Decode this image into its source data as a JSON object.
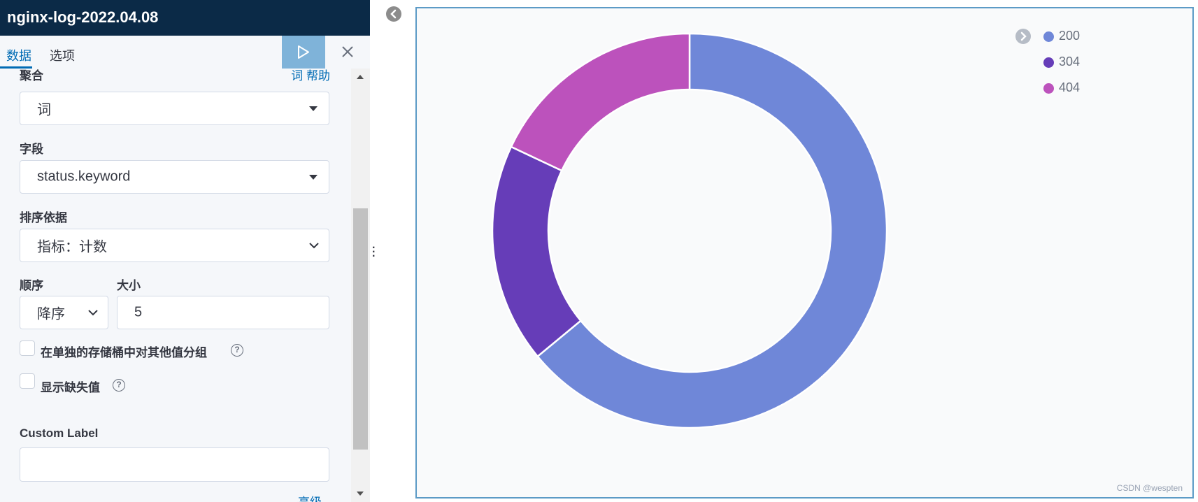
{
  "header": {
    "title": "nginx-log-2022.04.08"
  },
  "tabs": [
    {
      "label": "数据",
      "active": true
    },
    {
      "label": "选项",
      "active": false
    }
  ],
  "form": {
    "aggregation": {
      "label": "聚合",
      "help": "词 帮助",
      "value": "词"
    },
    "field": {
      "label": "字段",
      "value": "status.keyword"
    },
    "order_by": {
      "label": "排序依据",
      "value": "指标：计数"
    },
    "order": {
      "label": "顺序",
      "value": "降序"
    },
    "size": {
      "label": "大小",
      "value": "5"
    },
    "group_other": {
      "label": "在单独的存储桶中对其他值分组",
      "checked": false
    },
    "show_missing": {
      "label": "显示缺失值",
      "checked": false
    },
    "custom_label": {
      "label": "Custom Label",
      "value": ""
    },
    "advanced": "高级",
    "help_mark": "?"
  },
  "colors": {
    "accent": "#006bb4",
    "header": "#0b2a47"
  },
  "chart_data": {
    "type": "pie",
    "donut": true,
    "categories": [
      "200",
      "304",
      "404"
    ],
    "values": [
      64,
      18,
      18
    ],
    "colors": [
      "#6f87d8",
      "#663db8",
      "#bc52bc"
    ],
    "legend_position": "top-right"
  },
  "watermark": "CSDN @wespten"
}
